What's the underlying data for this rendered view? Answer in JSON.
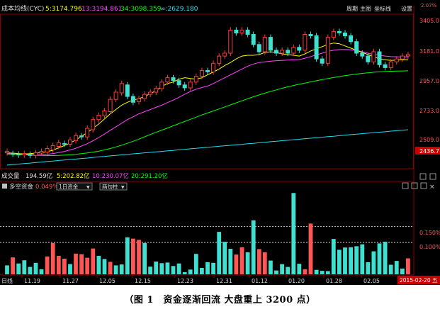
{
  "main_panel": {
    "title": "成本均线(CYC)",
    "legend": [
      {
        "label": "5:3174.796",
        "color": "#ffff00"
      },
      {
        "label": "13:3194.861",
        "color": "#ff44ff"
      },
      {
        "label": "34:3098.359",
        "color": "#00ff00"
      },
      {
        "label": "∞:2629.180",
        "color": "#22ddee"
      }
    ],
    "toolbar": [
      "周期",
      "主图",
      "坐标线",
      "设置"
    ],
    "price_ticks": [
      "3405.0",
      "3181.0",
      "2957.0",
      "2733.0",
      "2509.0"
    ],
    "top_price_label": "2.07%",
    "current_price": "2436.7"
  },
  "volume_panel": {
    "title": "成交量",
    "value": "194.59亿",
    "ma5": "5:202.82亿",
    "ma10": "10:230.07亿",
    "ma20": "20:291.20亿"
  },
  "indicator_panel": {
    "title": "多空资金",
    "pct": "0.049%",
    "select1": "1日资金",
    "select2": "两句柱",
    "levels": [
      "0.150%",
      "0.100%"
    ],
    "level_values": [
      0.15,
      0.1
    ]
  },
  "bottom_bar": {
    "label": "日线",
    "dates": [
      "11.19",
      "11.27",
      "12.05",
      "12.15",
      "12.23",
      "12.31",
      "01.12",
      "01.20",
      "01.28",
      "02.05"
    ],
    "current_date": "2015-02-20 五"
  },
  "caption": "（图 1　资金逐渐回流  大盘重上 3200 点）",
  "chart_data": {
    "type": "bar",
    "title": "多空资金",
    "ylabel": "",
    "ylim": [
      0,
      0.26
    ],
    "reference_lines": [
      0.15,
      0.1
    ],
    "values": [
      0.028,
      0.053,
      0.034,
      0.044,
      0.023,
      0.036,
      0.016,
      0.056,
      0.098,
      0.058,
      0.049,
      0.032,
      0.065,
      0.063,
      0.052,
      0.081,
      0.058,
      0.048,
      0.039,
      0.028,
      0.031,
      0.116,
      0.112,
      0.108,
      0.098,
      0.024,
      0.04,
      0.035,
      0.037,
      0.026,
      0.034,
      0.007,
      0.015,
      0.064,
      0.02,
      0.038,
      0.036,
      0.133,
      0.102,
      0.08,
      0.062,
      0.085,
      0.069,
      0.169,
      0.079,
      0.069,
      0.043,
      0.012,
      0.032,
      0.023,
      0.255,
      0.033,
      0.016,
      0.159,
      0.014,
      0.011,
      0.01,
      0.111,
      0.077,
      0.084,
      0.085,
      0.088,
      0.094,
      0.038,
      0.072,
      0.097,
      0.102,
      0.03,
      0.042,
      0.018,
      0.05
    ],
    "colors": [
      "#40e0d0",
      "#ff5555",
      "#40e0d0",
      "#40e0d0",
      "#40e0d0",
      "#40e0d0",
      "#40e0d0",
      "#ff5555",
      "#ff5555",
      "#ff5555",
      "#ff5555",
      "#40e0d0",
      "#ff5555",
      "#ff5555",
      "#ff5555",
      "#ff5555",
      "#40e0d0",
      "#40e0d0",
      "#ff5555",
      "#40e0d0",
      "#40e0d0",
      "#40e0d0",
      "#ff5555",
      "#ff5555",
      "#40e0d0",
      "#40e0d0",
      "#40e0d0",
      "#40e0d0",
      "#40e0d0",
      "#40e0d0",
      "#40e0d0",
      "#40e0d0",
      "#40e0d0",
      "#40e0d0",
      "#40e0d0",
      "#40e0d0",
      "#40e0d0",
      "#40e0d0",
      "#40e0d0",
      "#40e0d0",
      "#ff5555",
      "#ff5555",
      "#40e0d0",
      "#40e0d0",
      "#ff5555",
      "#ff5555",
      "#40e0d0",
      "#40e0d0",
      "#40e0d0",
      "#40e0d0",
      "#40e0d0",
      "#40e0d0",
      "#ff5555",
      "#ff5555",
      "#40e0d0",
      "#40e0d0",
      "#40e0d0",
      "#40e0d0",
      "#40e0d0",
      "#40e0d0",
      "#40e0d0",
      "#40e0d0",
      "#40e0d0",
      "#40e0d0",
      "#40e0d0",
      "#40e0d0",
      "#40e0d0",
      "#40e0d0",
      "#40e0d0",
      "#40e0d0",
      "#ff5555"
    ]
  },
  "price_chart_data": {
    "type": "line",
    "ylim": [
      2430,
      3480
    ],
    "ma5": [
      2530,
      2528,
      2525,
      2522,
      2524,
      2528,
      2532,
      2538,
      2548,
      2565,
      2580,
      2598,
      2620,
      2645,
      2670,
      2700,
      2730,
      2765,
      2800,
      2830,
      2860,
      2880,
      2895,
      2905,
      2920,
      2940,
      2960,
      2990,
      3010,
      3020,
      3040,
      3050,
      3045,
      3040,
      3050,
      3070,
      3090,
      3110,
      3135,
      3155,
      3180,
      3200,
      3205,
      3205,
      3210,
      3225,
      3230,
      3225,
      3215,
      3210,
      3205,
      3200,
      3215,
      3235,
      3250,
      3265,
      3280,
      3290,
      3285,
      3270,
      3255,
      3240,
      3225,
      3210,
      3195,
      3180,
      3175,
      3170,
      3172,
      3174,
      3175
    ],
    "ma13": [
      2525,
      2525,
      2523,
      2520,
      2518,
      2517,
      2518,
      2520,
      2525,
      2532,
      2540,
      2550,
      2562,
      2577,
      2594,
      2614,
      2636,
      2660,
      2686,
      2710,
      2735,
      2760,
      2780,
      2800,
      2815,
      2830,
      2845,
      2860,
      2878,
      2895,
      2915,
      2935,
      2955,
      2970,
      2982,
      2992,
      3010,
      3030,
      3050,
      3070,
      3090,
      3110,
      3130,
      3145,
      3155,
      3160,
      3165,
      3168,
      3170,
      3172,
      3174,
      3176,
      3185,
      3196,
      3208,
      3220,
      3232,
      3240,
      3245,
      3246,
      3244,
      3238,
      3230,
      3220,
      3212,
      3205,
      3200,
      3196,
      3195,
      3194,
      3194
    ],
    "ma34": [
      2520,
      2519,
      2518,
      2517,
      2515,
      2513,
      2512,
      2511,
      2511,
      2512,
      2514,
      2517,
      2520,
      2524,
      2529,
      2535,
      2542,
      2550,
      2560,
      2571,
      2583,
      2596,
      2610,
      2625,
      2641,
      2657,
      2672,
      2687,
      2702,
      2717,
      2732,
      2747,
      2762,
      2777,
      2792,
      2806,
      2820,
      2834,
      2848,
      2862,
      2876,
      2890,
      2904,
      2918,
      2931,
      2943,
      2955,
      2966,
      2977,
      2987,
      2996,
      3005,
      3013,
      3021,
      3029,
      3037,
      3044,
      3051,
      3058,
      3064,
      3070,
      3075,
      3080,
      3084,
      3088,
      3091,
      3093,
      3095,
      3096,
      3097,
      3098
    ],
    "mainf": [
      2445,
      2449,
      2452,
      2456,
      2459,
      2463,
      2466,
      2470,
      2473,
      2477,
      2480,
      2484,
      2487,
      2491,
      2494,
      2498,
      2502,
      2505,
      2509,
      2512,
      2516,
      2519,
      2523,
      2526,
      2530,
      2533,
      2537,
      2540,
      2544,
      2547,
      2551,
      2554,
      2558,
      2561,
      2565,
      2568,
      2572,
      2575,
      2579,
      2582,
      2586,
      2589,
      2593,
      2596,
      2600,
      2603,
      2607,
      2610,
      2614,
      2617,
      2621,
      2624,
      2628,
      2631,
      2635,
      2638,
      2642,
      2645,
      2649,
      2652,
      2656,
      2659,
      2663,
      2666,
      2670,
      2673,
      2676,
      2680,
      2683,
      2686,
      2690
    ],
    "candles": [
      [
        2530,
        2540
      ],
      [
        2525,
        2520
      ],
      [
        2522,
        2515
      ],
      [
        2515,
        2525
      ],
      [
        2520,
        2512
      ],
      [
        2512,
        2530
      ],
      [
        2528,
        2540
      ],
      [
        2535,
        2560
      ],
      [
        2550,
        2580
      ],
      [
        2575,
        2600
      ],
      [
        2595,
        2590
      ],
      [
        2590,
        2620
      ],
      [
        2615,
        2650
      ],
      [
        2648,
        2640
      ],
      [
        2640,
        2700
      ],
      [
        2690,
        2760
      ],
      [
        2760,
        2790
      ],
      [
        2785,
        2820
      ],
      [
        2815,
        2900
      ],
      [
        2900,
        2950
      ],
      [
        2945,
        3010
      ],
      [
        3000,
        2920
      ],
      [
        2920,
        2880
      ],
      [
        2885,
        2905
      ],
      [
        2905,
        2935
      ],
      [
        2935,
        2950
      ],
      [
        2950,
        2975
      ],
      [
        2975,
        3020
      ],
      [
        3020,
        3050
      ],
      [
        3050,
        3030
      ],
      [
        3030,
        3000
      ],
      [
        3000,
        2980
      ],
      [
        2980,
        3020
      ],
      [
        3020,
        3060
      ],
      [
        3060,
        3100
      ],
      [
        3100,
        3090
      ],
      [
        3090,
        3150
      ],
      [
        3150,
        3200
      ],
      [
        3200,
        3220
      ],
      [
        3220,
        3380
      ],
      [
        3380,
        3360
      ],
      [
        3360,
        3380
      ],
      [
        3380,
        3350
      ],
      [
        3350,
        3280
      ],
      [
        3280,
        3230
      ],
      [
        3230,
        3330
      ],
      [
        3330,
        3240
      ],
      [
        3240,
        3220
      ],
      [
        3220,
        3240
      ],
      [
        3240,
        3220
      ],
      [
        3220,
        3260
      ],
      [
        3260,
        3240
      ],
      [
        3240,
        3350
      ],
      [
        3350,
        3340
      ],
      [
        3340,
        3180
      ],
      [
        3180,
        3150
      ],
      [
        3150,
        3330
      ],
      [
        3330,
        3370
      ],
      [
        3370,
        3360
      ],
      [
        3360,
        3340
      ],
      [
        3340,
        3300
      ],
      [
        3300,
        3220
      ],
      [
        3220,
        3200
      ],
      [
        3200,
        3160
      ],
      [
        3160,
        3230
      ],
      [
        3230,
        3140
      ],
      [
        3140,
        3120
      ],
      [
        3120,
        3160
      ],
      [
        3160,
        3180
      ],
      [
        3180,
        3200
      ],
      [
        3200,
        3210
      ]
    ]
  }
}
